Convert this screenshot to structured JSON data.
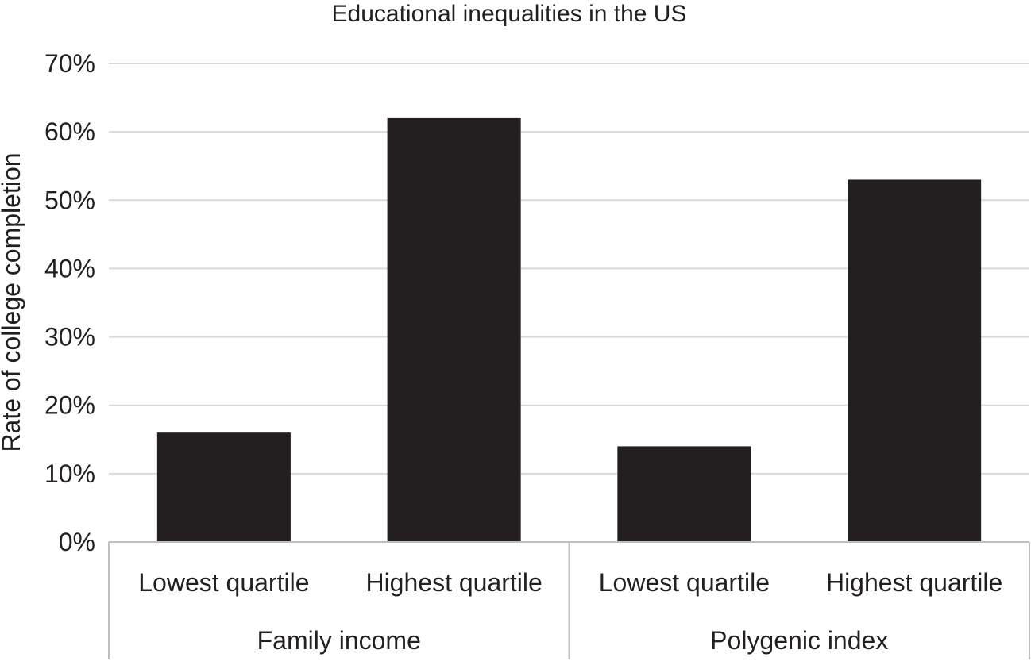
{
  "chart_data": {
    "type": "bar",
    "title": "Educational inequalities in the US",
    "ylabel": "Rate of college completion",
    "xlabel": "",
    "ylim": [
      0,
      0.7
    ],
    "yticks": [
      "0%",
      "10%",
      "20%",
      "30%",
      "40%",
      "50%",
      "60%",
      "70%"
    ],
    "grid": true,
    "groups": [
      {
        "label": "Family income",
        "categories": [
          "Lowest quartile",
          "Highest quartile"
        ],
        "values": [
          0.16,
          0.62
        ]
      },
      {
        "label": "Polygenic index",
        "categories": [
          "Lowest quartile",
          "Highest quartile"
        ],
        "values": [
          0.14,
          0.53
        ]
      }
    ],
    "colors": {
      "bar": "#231f20",
      "grid": "#d9d9d9",
      "axis": "#bfbfbf",
      "text": "#231f20"
    }
  }
}
